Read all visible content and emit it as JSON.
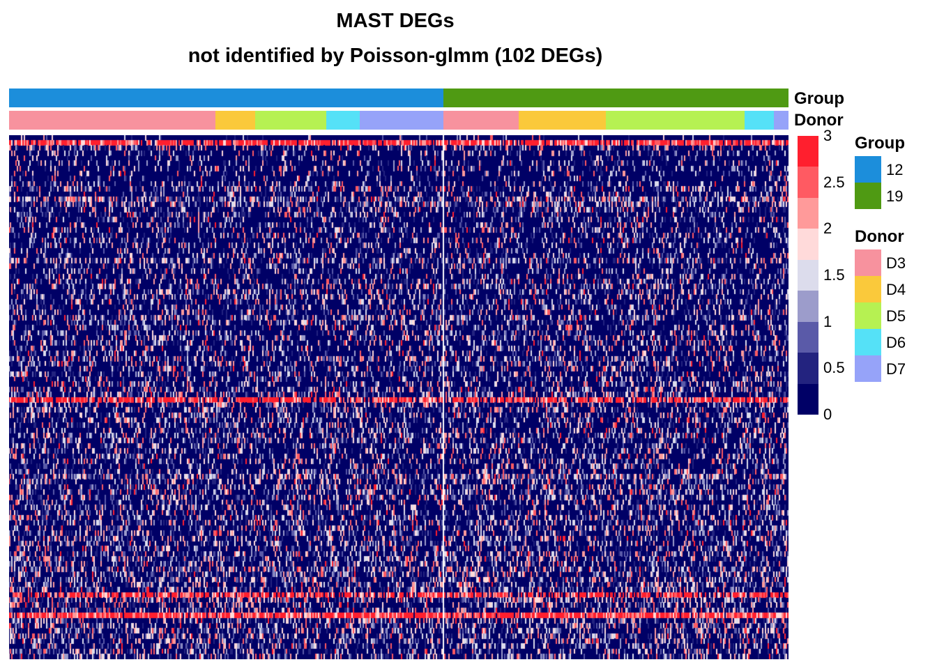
{
  "title_line1": "MAST DEGs",
  "title_line2": "not identified by Poisson-glmm (102 DEGs)",
  "annotation_labels": {
    "group": "Group",
    "donor": "Donor"
  },
  "chart_data": {
    "type": "heatmap",
    "n_genes": 102,
    "value_range": [
      0,
      3
    ],
    "color_scale": [
      {
        "from": 0,
        "to": 0.375,
        "color": "#000066"
      },
      {
        "from": 0.375,
        "to": 0.75,
        "color": "#23237F"
      },
      {
        "from": 0.75,
        "to": 1.125,
        "color": "#5A5AA8"
      },
      {
        "from": 1.125,
        "to": 1.5,
        "color": "#9C9CCB"
      },
      {
        "from": 1.5,
        "to": 1.875,
        "color": "#DCDCEC"
      },
      {
        "from": 1.875,
        "to": 2.25,
        "color": "#FFDADA"
      },
      {
        "from": 2.25,
        "to": 2.625,
        "color": "#FF9A9A"
      },
      {
        "from": 2.625,
        "to": 3,
        "color": "#FF5A62"
      },
      {
        "from": 3,
        "to": 3,
        "color": "#FF1F2E"
      }
    ],
    "colorkey_ticks": [
      "3",
      "2.5",
      "2",
      "1.5",
      "1",
      "0.5",
      "0"
    ],
    "column_annotations": {
      "group": [
        {
          "label": "12",
          "color": "#1C8EDB",
          "fraction": 0.557
        },
        {
          "label": "19",
          "color": "#4F9A13",
          "fraction": 0.443
        }
      ],
      "donor": [
        {
          "label": "D3",
          "color": "#F7929E",
          "fraction": 0.265
        },
        {
          "label": "D4",
          "color": "#FAC93B",
          "fraction": 0.051
        },
        {
          "label": "D5",
          "color": "#B6F152",
          "fraction": 0.091
        },
        {
          "label": "D6",
          "color": "#55E1F7",
          "fraction": 0.043
        },
        {
          "label": "D7",
          "color": "#96A3F9",
          "fraction": 0.107
        },
        {
          "label": "D3",
          "color": "#F7929E",
          "fraction": 0.097
        },
        {
          "label": "D4",
          "color": "#FAC93B",
          "fraction": 0.112
        },
        {
          "label": "D5",
          "color": "#B6F152",
          "fraction": 0.178
        },
        {
          "label": "D6",
          "color": "#55E1F7",
          "fraction": 0.037
        },
        {
          "label": "D7",
          "color": "#96A3F9",
          "fraction": 0.019
        }
      ]
    },
    "row_density": [
      0.1,
      0.9,
      0.35,
      0.25,
      0.2,
      0.3,
      0.25,
      0.2,
      0.2,
      0.3,
      0.45,
      0.25,
      0.7,
      0.55,
      0.4,
      0.35,
      0.3,
      0.3,
      0.35,
      0.3,
      0.3,
      0.3,
      0.3,
      0.3,
      0.6,
      0.3,
      0.3,
      0.3,
      0.35,
      0.4,
      0.4,
      0.4,
      0.35,
      0.35,
      0.4,
      0.55,
      0.4,
      0.35,
      0.4,
      0.4,
      0.35,
      0.35,
      0.35,
      0.45,
      0.4,
      0.35,
      0.45,
      0.35,
      0.4,
      0.45,
      0.5,
      0.8,
      0.4,
      0.45,
      0.4,
      0.45,
      0.4,
      0.4,
      0.45,
      0.45,
      0.4,
      0.4,
      0.4,
      0.4,
      0.4,
      0.45,
      0.7,
      0.45,
      0.5,
      0.45,
      0.5,
      0.4,
      0.45,
      0.4,
      0.45,
      0.5,
      0.45,
      0.45,
      0.5,
      0.45,
      0.45,
      0.5,
      0.45,
      0.45,
      0.6,
      0.45,
      0.5,
      0.5,
      0.5,
      0.75,
      0.55,
      0.45,
      0.5,
      0.95,
      0.5,
      0.5,
      0.5,
      0.5,
      0.45,
      0.45,
      0.5,
      0.5
    ]
  },
  "legends": {
    "group": {
      "title": "Group",
      "items": [
        {
          "label": "12",
          "color": "#1C8EDB"
        },
        {
          "label": "19",
          "color": "#4F9A13"
        }
      ]
    },
    "donor": {
      "title": "Donor",
      "items": [
        {
          "label": "D3",
          "color": "#F7929E"
        },
        {
          "label": "D4",
          "color": "#FAC93B"
        },
        {
          "label": "D5",
          "color": "#B6F152"
        },
        {
          "label": "D6",
          "color": "#55E1F7"
        },
        {
          "label": "D7",
          "color": "#96A3F9"
        }
      ]
    }
  }
}
